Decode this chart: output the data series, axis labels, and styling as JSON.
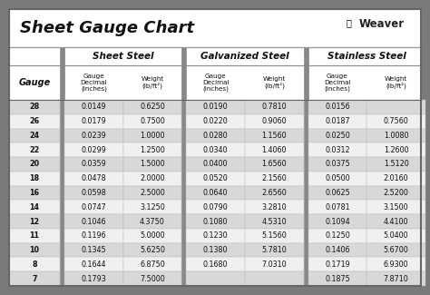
{
  "title": "Sheet Gauge Chart",
  "bg_outer": "#7a7a7a",
  "bg_white": "#ffffff",
  "row_gray": "#d8d8d8",
  "row_white": "#f0f0f0",
  "header_line_color": "#555555",
  "text_dark": "#111111",
  "gauges": [
    28,
    26,
    24,
    22,
    20,
    18,
    16,
    14,
    12,
    11,
    10,
    8,
    7
  ],
  "sheet_steel_decimal": [
    "0.0149",
    "0.0179",
    "0.0239",
    "0.0299",
    "0.0359",
    "0.0478",
    "0.0598",
    "0.0747",
    "0.1046",
    "0.1196",
    "0.1345",
    "0.1644",
    "0.1793"
  ],
  "sheet_steel_weight": [
    "0.6250",
    "0.7500",
    "1.0000",
    "1.2500",
    "1.5000",
    "2.0000",
    "2.5000",
    "3.1250",
    "4.3750",
    "5.0000",
    "5.6250",
    "6.8750",
    "7.5000"
  ],
  "galvanized_decimal": [
    "0.0190",
    "0.0220",
    "0.0280",
    "0.0340",
    "0.0400",
    "0.0520",
    "0.0640",
    "0.0790",
    "0.1080",
    "0.1230",
    "0.1380",
    "0.1680",
    ""
  ],
  "galvanized_weight": [
    "0.7810",
    "0.9060",
    "1.1560",
    "1.4060",
    "1.6560",
    "2.1560",
    "2.6560",
    "3.2810",
    "4.5310",
    "5.1560",
    "5.7810",
    "7.0310",
    ""
  ],
  "stainless_decimal": [
    "0.0156",
    "0.0187",
    "0.0250",
    "0.0312",
    "0.0375",
    "0.0500",
    "0.0625",
    "0.0781",
    "0.1094",
    "0.1250",
    "0.1406",
    "0.1719",
    "0.1875"
  ],
  "stainless_weight": [
    "",
    "0.7560",
    "1.0080",
    "1.2600",
    "1.5120",
    "2.0160",
    "2.5200",
    "3.1500",
    "4.4100",
    "5.0400",
    "5.6700",
    "6.9300",
    "7.8710"
  ]
}
